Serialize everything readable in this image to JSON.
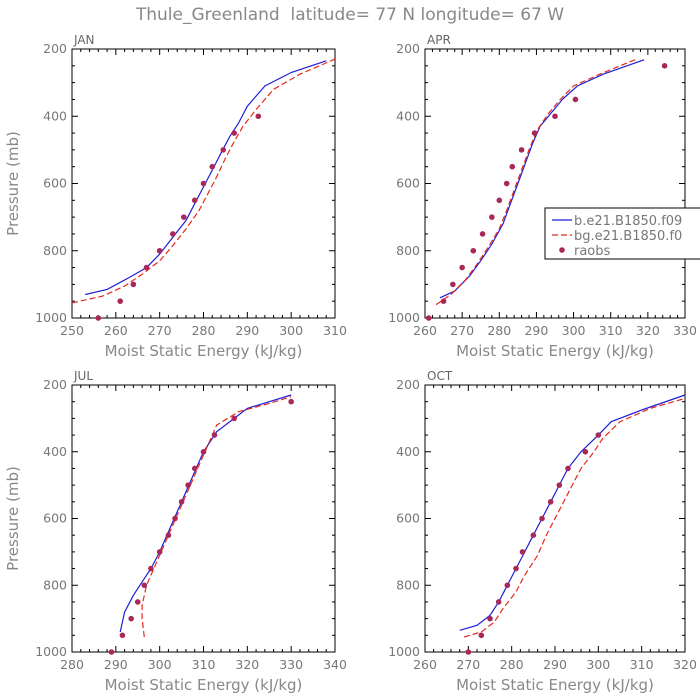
{
  "title": "Thule_Greenland  latitude= 77 N longitude= 67 W",
  "colors": {
    "model1": "#1f1fd6",
    "model2": "#e8281f",
    "obs": "#a8285a",
    "text": "#888888",
    "axis": "#000000"
  },
  "legend": {
    "placement": "right of APR panel, middle",
    "entries": [
      "b.e21.B1850.f09",
      "bg.e21.B1850.f0",
      "raobs"
    ]
  },
  "chart_data": [
    {
      "type": "line",
      "title": "JAN",
      "xlabel": "Moist Static Energy (kJ/kg)",
      "ylabel": "Pressure (mb)",
      "xlim": [
        250,
        310
      ],
      "ylim": [
        1000,
        200
      ],
      "xticks": [
        250,
        260,
        270,
        280,
        290,
        300,
        310
      ],
      "xtick_labels": [
        "250",
        "260",
        "270",
        "280",
        "290",
        "300",
        "310"
      ],
      "yticks": [
        1000,
        800,
        600,
        400,
        200
      ],
      "ytick_labels": [
        "1000",
        "800",
        "600",
        "400",
        "200"
      ],
      "series": [
        {
          "name": "b.e21.B1850.f09",
          "style": "solid",
          "points": [
            [
              253,
              930
            ],
            [
              258,
              915
            ],
            [
              263,
              880
            ],
            [
              267,
              850
            ],
            [
              270,
              810
            ],
            [
              273,
              760
            ],
            [
              276,
              710
            ],
            [
              278,
              660
            ],
            [
              280,
              610
            ],
            [
              282,
              560
            ],
            [
              284,
              510
            ],
            [
              286,
              460
            ],
            [
              288,
              420
            ],
            [
              290,
              370
            ],
            [
              294,
              310
            ],
            [
              300,
              270
            ],
            [
              308,
              235
            ]
          ]
        },
        {
          "name": "bg.e21.B1850.f0",
          "style": "dashed",
          "points": [
            [
              250,
              955
            ],
            [
              257,
              935
            ],
            [
              262,
              905
            ],
            [
              266,
              870
            ],
            [
              270,
              830
            ],
            [
              273,
              785
            ],
            [
              276,
              735
            ],
            [
              279,
              680
            ],
            [
              281,
              630
            ],
            [
              283,
              580
            ],
            [
              285,
              525
            ],
            [
              287,
              475
            ],
            [
              289,
              430
            ],
            [
              292,
              380
            ],
            [
              296,
              320
            ],
            [
              302,
              275
            ],
            [
              310,
              230
            ]
          ]
        },
        {
          "name": "raobs",
          "style": "dots",
          "points": [
            [
              256,
              1000
            ],
            [
              261,
              950
            ],
            [
              264,
              900
            ],
            [
              267,
              850
            ],
            [
              270,
              800
            ],
            [
              273,
              750
            ],
            [
              275.5,
              700
            ],
            [
              278,
              650
            ],
            [
              280,
              600
            ],
            [
              282,
              550
            ],
            [
              284.5,
              500
            ],
            [
              287,
              450
            ],
            [
              292.5,
              400
            ]
          ]
        }
      ]
    },
    {
      "type": "line",
      "title": "APR",
      "xlabel": "Moist Static Energy (kJ/kg)",
      "ylabel": "",
      "xlim": [
        260,
        330
      ],
      "ylim": [
        1000,
        200
      ],
      "xticks": [
        260,
        270,
        280,
        290,
        300,
        310,
        320,
        330
      ],
      "xtick_labels": [
        "260",
        "270",
        "280",
        "290",
        "300",
        "310",
        "320",
        "330"
      ],
      "yticks": [
        1000,
        800,
        600,
        400,
        200
      ],
      "ytick_labels": [
        "1000",
        "800",
        "600",
        "400",
        "200"
      ],
      "series": [
        {
          "name": "b.e21.B1850.f09",
          "style": "solid",
          "points": [
            [
              264,
              940
            ],
            [
              268,
              920
            ],
            [
              272,
              875
            ],
            [
              275,
              830
            ],
            [
              278,
              780
            ],
            [
              281,
              720
            ],
            [
              283,
              660
            ],
            [
              285,
              600
            ],
            [
              287,
              540
            ],
            [
              289,
              480
            ],
            [
              291,
              430
            ],
            [
              294,
              390
            ],
            [
              297,
              350
            ],
            [
              301,
              310
            ],
            [
              308,
              275
            ],
            [
              319,
              232
            ]
          ]
        },
        {
          "name": "bg.e21.B1850.f0",
          "style": "dashed",
          "points": [
            [
              263,
              960
            ],
            [
              267,
              930
            ],
            [
              271,
              885
            ],
            [
              274,
              840
            ],
            [
              277,
              790
            ],
            [
              280,
              735
            ],
            [
              282,
              680
            ],
            [
              284,
              620
            ],
            [
              286,
              560
            ],
            [
              288,
              500
            ],
            [
              290,
              445
            ],
            [
              293,
              395
            ],
            [
              296,
              355
            ],
            [
              300,
              310
            ],
            [
              307,
              275
            ],
            [
              317,
              230
            ]
          ]
        },
        {
          "name": "raobs",
          "style": "dots",
          "points": [
            [
              261,
              1000
            ],
            [
              265,
              950
            ],
            [
              267.5,
              900
            ],
            [
              270,
              850
            ],
            [
              273,
              800
            ],
            [
              275.5,
              750
            ],
            [
              278,
              700
            ],
            [
              280,
              650
            ],
            [
              282,
              600
            ],
            [
              283.5,
              550
            ],
            [
              286,
              500
            ],
            [
              289.5,
              450
            ],
            [
              295,
              400
            ],
            [
              300.5,
              350
            ],
            [
              324.5,
              250
            ]
          ]
        }
      ]
    },
    {
      "type": "line",
      "title": "JUL",
      "xlabel": "Moist Static Energy (kJ/kg)",
      "ylabel": "Pressure (mb)",
      "xlim": [
        280,
        340
      ],
      "ylim": [
        1000,
        200
      ],
      "xticks": [
        280,
        290,
        300,
        310,
        320,
        330,
        340
      ],
      "xtick_labels": [
        "280",
        "290",
        "300",
        "310",
        "320",
        "330",
        "340"
      ],
      "yticks": [
        1000,
        800,
        600,
        400,
        200
      ],
      "ytick_labels": [
        "1000",
        "800",
        "600",
        "400",
        "200"
      ],
      "series": [
        {
          "name": "b.e21.B1850.f09",
          "style": "solid",
          "points": [
            [
              291,
              940
            ],
            [
              292,
              880
            ],
            [
              294,
              830
            ],
            [
              296,
              790
            ],
            [
              298,
              750
            ],
            [
              300,
              700
            ],
            [
              302,
              640
            ],
            [
              304,
              580
            ],
            [
              306,
              520
            ],
            [
              308,
              460
            ],
            [
              310,
              400
            ],
            [
              313,
              340
            ],
            [
              317,
              300
            ],
            [
              320,
              270
            ],
            [
              330,
              230
            ]
          ]
        },
        {
          "name": "bg.e21.B1850.f0",
          "style": "dashed",
          "points": [
            [
              296.5,
              955
            ],
            [
              296,
              900
            ],
            [
              296,
              860
            ],
            [
              297,
              800
            ],
            [
              299,
              740
            ],
            [
              301,
              680
            ],
            [
              303,
              620
            ],
            [
              305,
              560
            ],
            [
              307,
              500
            ],
            [
              309,
              440
            ],
            [
              311,
              380
            ],
            [
              313,
              320
            ],
            [
              318,
              280
            ],
            [
              325,
              255
            ],
            [
              330,
              235
            ]
          ]
        },
        {
          "name": "raobs",
          "style": "dots",
          "points": [
            [
              289,
              1000
            ],
            [
              291.5,
              950
            ],
            [
              293.5,
              900
            ],
            [
              295,
              850
            ],
            [
              296.5,
              800
            ],
            [
              298,
              750
            ],
            [
              300,
              700
            ],
            [
              302,
              650
            ],
            [
              303.5,
              600
            ],
            [
              305,
              550
            ],
            [
              306.5,
              500
            ],
            [
              308,
              450
            ],
            [
              310,
              400
            ],
            [
              312.5,
              350
            ],
            [
              317,
              300
            ],
            [
              330,
              250
            ]
          ]
        }
      ]
    },
    {
      "type": "line",
      "title": "OCT",
      "xlabel": "Moist Static Energy (kJ/kg)",
      "ylabel": "",
      "xlim": [
        260,
        320
      ],
      "ylim": [
        1000,
        200
      ],
      "xticks": [
        260,
        270,
        280,
        290,
        300,
        310,
        320
      ],
      "xtick_labels": [
        "260",
        "270",
        "280",
        "290",
        "300",
        "310",
        "320"
      ],
      "yticks": [
        1000,
        800,
        600,
        400,
        200
      ],
      "ytick_labels": [
        "1000",
        "800",
        "600",
        "400",
        "200"
      ],
      "series": [
        {
          "name": "b.e21.B1850.f09",
          "style": "solid",
          "points": [
            [
              268,
              935
            ],
            [
              272,
              920
            ],
            [
              275,
              890
            ],
            [
              277,
              850
            ],
            [
              279,
              800
            ],
            [
              281,
              750
            ],
            [
              283,
              700
            ],
            [
              285,
              650
            ],
            [
              287,
              600
            ],
            [
              289,
              550
            ],
            [
              291,
              500
            ],
            [
              293,
              450
            ],
            [
              296,
              400
            ],
            [
              300,
              350
            ],
            [
              303,
              310
            ],
            [
              310,
              275
            ],
            [
              320,
              230
            ]
          ]
        },
        {
          "name": "bg.e21.B1850.f0",
          "style": "dashed",
          "points": [
            [
              269,
              955
            ],
            [
              273,
              940
            ],
            [
              276,
              910
            ],
            [
              278,
              870
            ],
            [
              281,
              820
            ],
            [
              283,
              770
            ],
            [
              286,
              710
            ],
            [
              288,
              650
            ],
            [
              290,
              600
            ],
            [
              292,
              550
            ],
            [
              294,
              500
            ],
            [
              296,
              450
            ],
            [
              299,
              400
            ],
            [
              301,
              360
            ],
            [
              305,
              310
            ],
            [
              312,
              270
            ],
            [
              320,
              240
            ]
          ]
        },
        {
          "name": "raobs",
          "style": "dots",
          "points": [
            [
              270,
              1000
            ],
            [
              273,
              950
            ],
            [
              275,
              900
            ],
            [
              277,
              850
            ],
            [
              279,
              800
            ],
            [
              281,
              750
            ],
            [
              282.5,
              700
            ],
            [
              285,
              650
            ],
            [
              287,
              600
            ],
            [
              289,
              550
            ],
            [
              291,
              500
            ],
            [
              293,
              450
            ],
            [
              297,
              400
            ],
            [
              300,
              350
            ]
          ]
        }
      ]
    }
  ]
}
